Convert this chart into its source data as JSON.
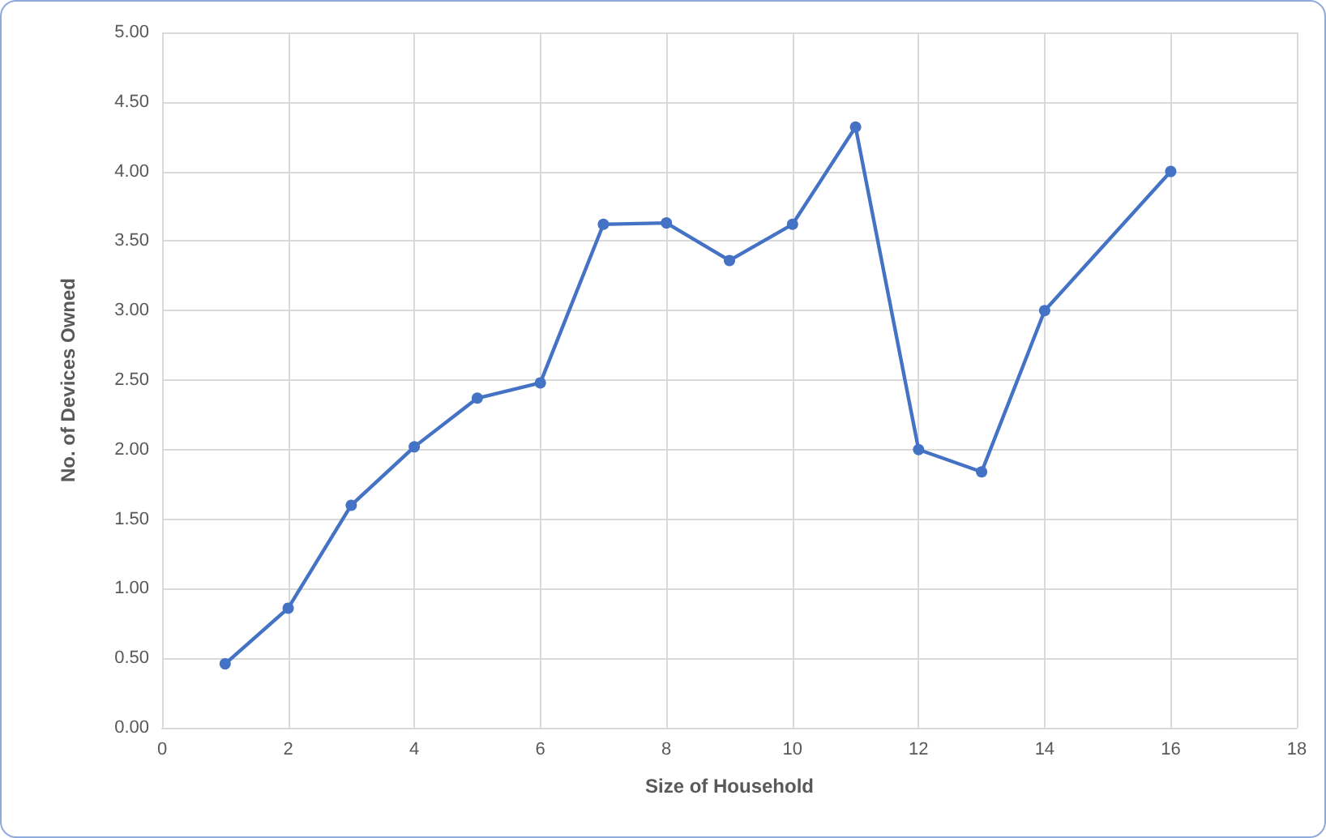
{
  "chart_data": {
    "type": "line",
    "xlabel": "Size of Household",
    "ylabel": "No. of Devices Owned",
    "x": [
      1,
      2,
      3,
      4,
      5,
      6,
      7,
      8,
      9,
      10,
      11,
      12,
      13,
      14,
      16
    ],
    "series": [
      {
        "color": "#4472c4",
        "values": [
          0.46,
          0.86,
          1.6,
          2.02,
          2.37,
          2.48,
          3.62,
          3.63,
          3.36,
          3.62,
          4.32,
          2.0,
          1.84,
          3.0,
          4.0
        ]
      }
    ],
    "xlim": [
      0,
      18
    ],
    "xticks": [
      0,
      2,
      4,
      6,
      8,
      10,
      12,
      14,
      16,
      18
    ],
    "ylim": [
      0,
      5
    ],
    "yticks": [
      {
        "value": 0,
        "label": "0.00"
      },
      {
        "value": 0.5,
        "label": "0.50"
      },
      {
        "value": 1,
        "label": "1.00"
      },
      {
        "value": 1.5,
        "label": "1.50"
      },
      {
        "value": 2,
        "label": "2.00"
      },
      {
        "value": 2.5,
        "label": "2.50"
      },
      {
        "value": 3,
        "label": "3.00"
      },
      {
        "value": 3.5,
        "label": "3.50"
      },
      {
        "value": 4,
        "label": "4.00"
      },
      {
        "value": 4.5,
        "label": "4.50"
      },
      {
        "value": 5,
        "label": "5.00"
      }
    ],
    "grid": true,
    "marker": "circle",
    "line_style": "solid"
  }
}
